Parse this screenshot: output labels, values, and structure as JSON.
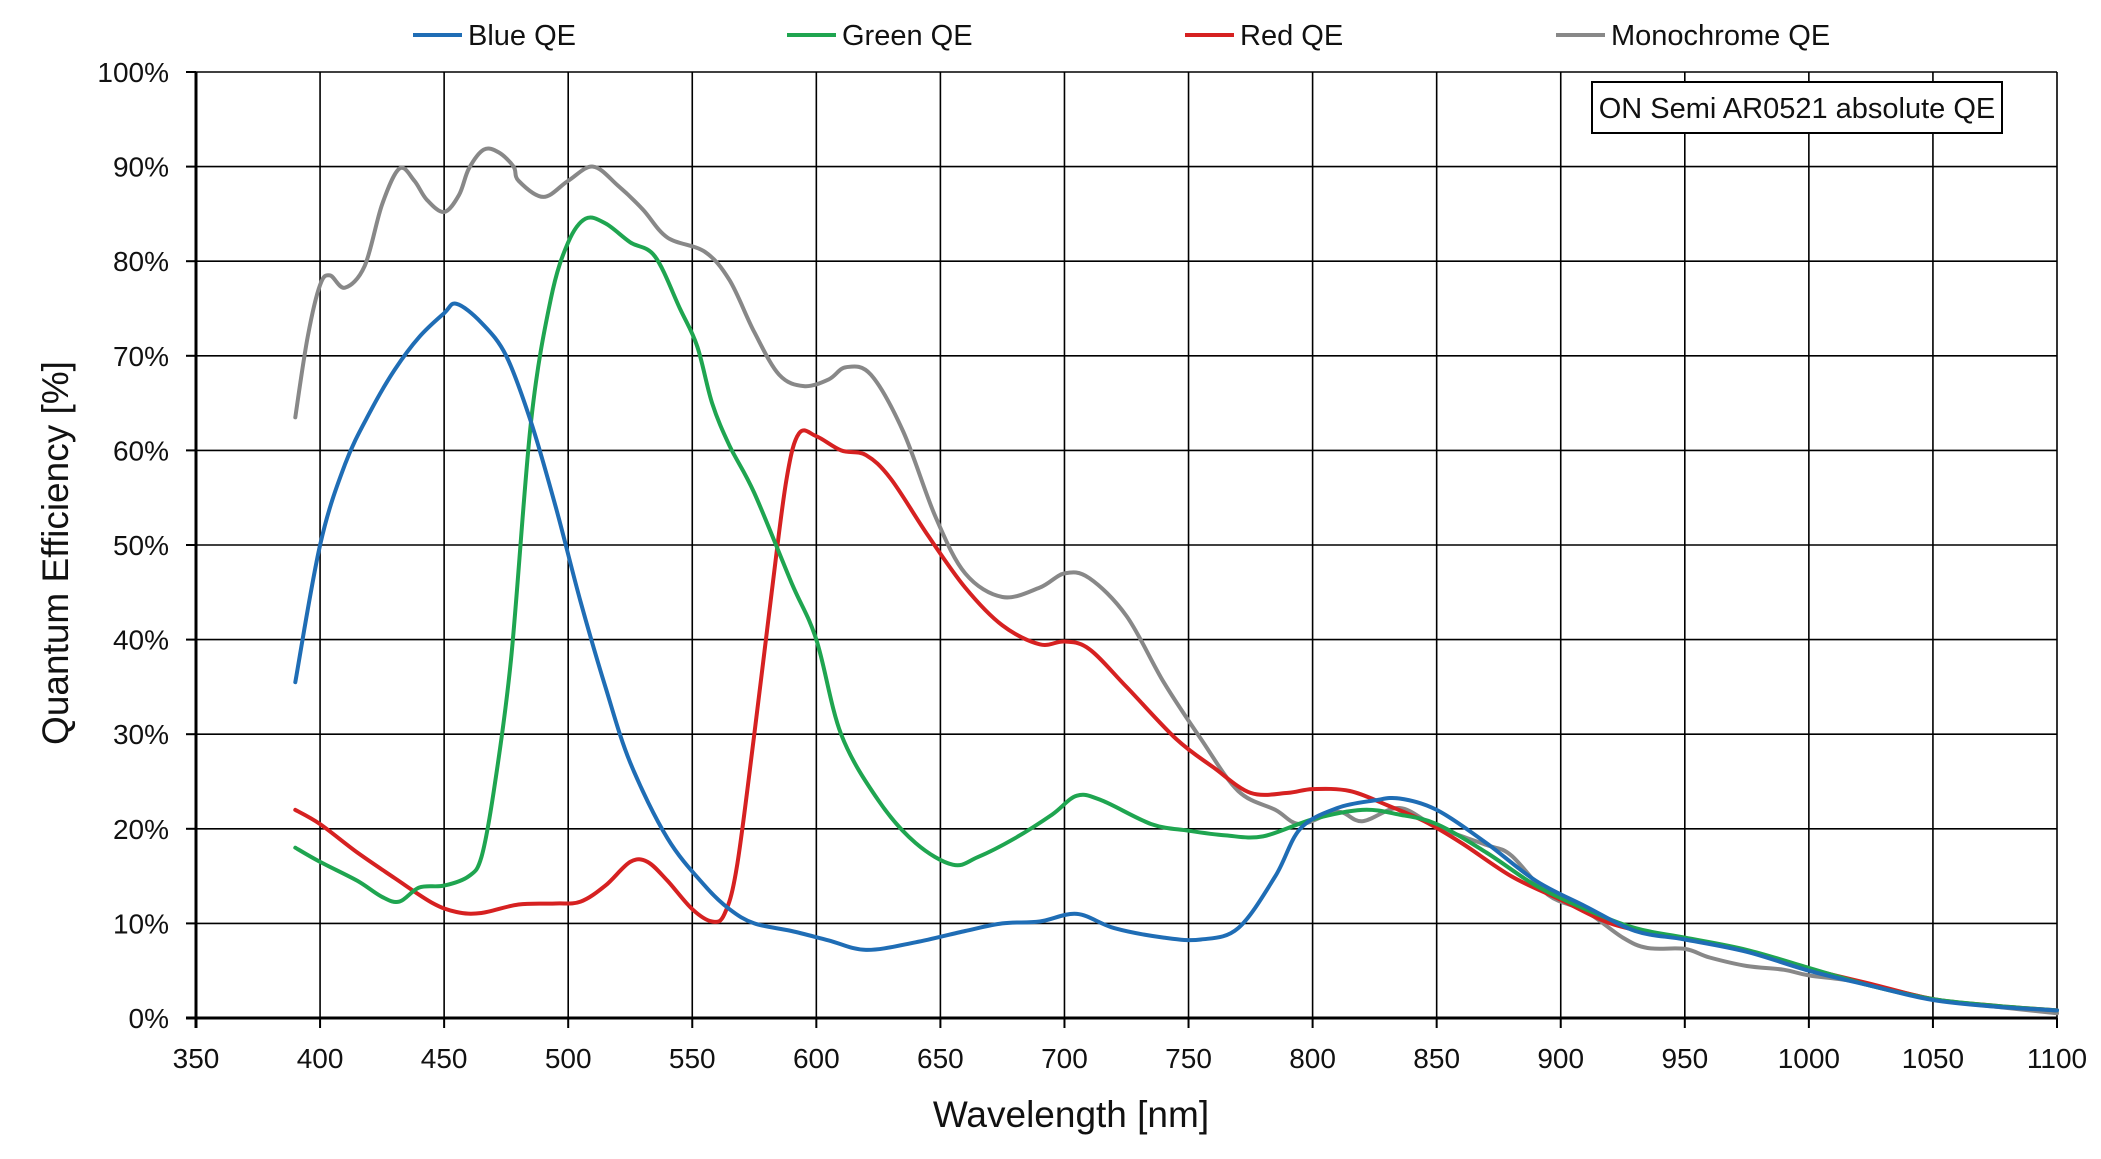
{
  "chart_data": {
    "type": "line",
    "title": "",
    "annotation": "ON Semi AR0521 absolute QE",
    "xlabel": "Wavelength [nm]",
    "ylabel": "Quantum Efficiency [%]",
    "xlim": [
      350,
      1100
    ],
    "ylim": [
      0,
      100
    ],
    "x_ticks": [
      350,
      400,
      450,
      500,
      550,
      600,
      650,
      700,
      750,
      800,
      850,
      900,
      950,
      1000,
      1050,
      1100
    ],
    "y_ticks": [
      0,
      10,
      20,
      30,
      40,
      50,
      60,
      70,
      80,
      90,
      100
    ],
    "y_tick_format": "%",
    "grid": true,
    "legend_position": "top",
    "series": [
      {
        "name": "Blue QE",
        "color": "#1f6db5",
        "points": [
          [
            390,
            35.5
          ],
          [
            400,
            50
          ],
          [
            410,
            58.5
          ],
          [
            420,
            64
          ],
          [
            430,
            68.5
          ],
          [
            440,
            72
          ],
          [
            450,
            74.5
          ],
          [
            455,
            75.5
          ],
          [
            465,
            73.5
          ],
          [
            475,
            70
          ],
          [
            485,
            63
          ],
          [
            495,
            54
          ],
          [
            505,
            44
          ],
          [
            515,
            35
          ],
          [
            525,
            27
          ],
          [
            540,
            19
          ],
          [
            555,
            14
          ],
          [
            565,
            11.5
          ],
          [
            575,
            10
          ],
          [
            590,
            9.2
          ],
          [
            605,
            8.2
          ],
          [
            620,
            7.2
          ],
          [
            640,
            8
          ],
          [
            660,
            9.2
          ],
          [
            675,
            10
          ],
          [
            690,
            10.2
          ],
          [
            705,
            11
          ],
          [
            720,
            9.5
          ],
          [
            740,
            8.5
          ],
          [
            755,
            8.3
          ],
          [
            770,
            9.5
          ],
          [
            785,
            15
          ],
          [
            795,
            20
          ],
          [
            810,
            22.2
          ],
          [
            825,
            23
          ],
          [
            835,
            23.2
          ],
          [
            850,
            22
          ],
          [
            870,
            18.5
          ],
          [
            890,
            14.5
          ],
          [
            910,
            11.8
          ],
          [
            930,
            9.2
          ],
          [
            950,
            8.3
          ],
          [
            975,
            7
          ],
          [
            1000,
            5
          ],
          [
            1025,
            3.4
          ],
          [
            1050,
            1.9
          ],
          [
            1075,
            1.2
          ],
          [
            1100,
            0.8
          ]
        ]
      },
      {
        "name": "Green QE",
        "color": "#1fa550",
        "points": [
          [
            390,
            18
          ],
          [
            400,
            16.5
          ],
          [
            415,
            14.5
          ],
          [
            425,
            12.8
          ],
          [
            432,
            12.3
          ],
          [
            440,
            13.8
          ],
          [
            450,
            14
          ],
          [
            460,
            15
          ],
          [
            465,
            17
          ],
          [
            470,
            24
          ],
          [
            477,
            38
          ],
          [
            485,
            63
          ],
          [
            493,
            76
          ],
          [
            500,
            82
          ],
          [
            507,
            84.5
          ],
          [
            515,
            84
          ],
          [
            525,
            82
          ],
          [
            535,
            80.5
          ],
          [
            545,
            75
          ],
          [
            552,
            71
          ],
          [
            558,
            65
          ],
          [
            565,
            60.5
          ],
          [
            575,
            55.5
          ],
          [
            590,
            46
          ],
          [
            600,
            40
          ],
          [
            610,
            30
          ],
          [
            625,
            23
          ],
          [
            640,
            18.5
          ],
          [
            655,
            16.2
          ],
          [
            665,
            17
          ],
          [
            680,
            19
          ],
          [
            695,
            21.5
          ],
          [
            705,
            23.5
          ],
          [
            715,
            23
          ],
          [
            735,
            20.5
          ],
          [
            750,
            19.8
          ],
          [
            765,
            19.3
          ],
          [
            780,
            19.2
          ],
          [
            800,
            21
          ],
          [
            820,
            22
          ],
          [
            835,
            21.5
          ],
          [
            850,
            20.5
          ],
          [
            870,
            17.5
          ],
          [
            890,
            14
          ],
          [
            910,
            11.5
          ],
          [
            930,
            9.5
          ],
          [
            950,
            8.5
          ],
          [
            975,
            7.2
          ],
          [
            1000,
            5.3
          ],
          [
            1025,
            3.4
          ],
          [
            1050,
            2
          ],
          [
            1075,
            1.3
          ],
          [
            1100,
            0.8
          ]
        ]
      },
      {
        "name": "Red QE",
        "color": "#d62121",
        "points": [
          [
            390,
            22
          ],
          [
            400,
            20.5
          ],
          [
            415,
            17.5
          ],
          [
            430,
            14.8
          ],
          [
            445,
            12.2
          ],
          [
            455,
            11.2
          ],
          [
            465,
            11.1
          ],
          [
            480,
            12
          ],
          [
            495,
            12.1
          ],
          [
            505,
            12.3
          ],
          [
            515,
            14
          ],
          [
            525,
            16.5
          ],
          [
            532,
            16.5
          ],
          [
            540,
            14.5
          ],
          [
            550,
            11.5
          ],
          [
            558,
            10.2
          ],
          [
            563,
            11
          ],
          [
            568,
            16
          ],
          [
            575,
            30
          ],
          [
            582,
            45
          ],
          [
            588,
            57
          ],
          [
            593,
            61.8
          ],
          [
            600,
            61.5
          ],
          [
            610,
            60
          ],
          [
            620,
            59.5
          ],
          [
            630,
            57
          ],
          [
            645,
            51
          ],
          [
            660,
            45.5
          ],
          [
            675,
            41.5
          ],
          [
            690,
            39.5
          ],
          [
            700,
            39.8
          ],
          [
            710,
            39
          ],
          [
            725,
            35
          ],
          [
            745,
            29.5
          ],
          [
            760,
            26.5
          ],
          [
            775,
            23.8
          ],
          [
            790,
            23.8
          ],
          [
            800,
            24.2
          ],
          [
            815,
            24
          ],
          [
            830,
            22.5
          ],
          [
            845,
            20.8
          ],
          [
            860,
            18.5
          ],
          [
            880,
            15
          ],
          [
            900,
            12.5
          ],
          [
            920,
            10
          ],
          [
            940,
            8.8
          ],
          [
            960,
            7.9
          ],
          [
            980,
            6.8
          ],
          [
            1000,
            5.2
          ],
          [
            1025,
            3.6
          ],
          [
            1050,
            2
          ],
          [
            1075,
            1.3
          ],
          [
            1100,
            0.8
          ]
        ]
      },
      {
        "name": "Monochrome QE",
        "color": "#888888",
        "points": [
          [
            390,
            63.5
          ],
          [
            395,
            72
          ],
          [
            400,
            77.5
          ],
          [
            404,
            78.5
          ],
          [
            410,
            77.2
          ],
          [
            418,
            79.5
          ],
          [
            425,
            86
          ],
          [
            432,
            89.8
          ],
          [
            438,
            88.5
          ],
          [
            443,
            86.5
          ],
          [
            450,
            85.2
          ],
          [
            456,
            87
          ],
          [
            460,
            89.8
          ],
          [
            466,
            91.8
          ],
          [
            472,
            91.5
          ],
          [
            478,
            90
          ],
          [
            480,
            88.5
          ],
          [
            490,
            86.8
          ],
          [
            500,
            88.5
          ],
          [
            510,
            90
          ],
          [
            520,
            88
          ],
          [
            530,
            85.5
          ],
          [
            540,
            82.5
          ],
          [
            555,
            81
          ],
          [
            565,
            78
          ],
          [
            575,
            72.5
          ],
          [
            585,
            68
          ],
          [
            595,
            66.8
          ],
          [
            605,
            67.5
          ],
          [
            612,
            68.8
          ],
          [
            622,
            68
          ],
          [
            635,
            62
          ],
          [
            648,
            53
          ],
          [
            660,
            47
          ],
          [
            675,
            44.5
          ],
          [
            690,
            45.5
          ],
          [
            700,
            47
          ],
          [
            710,
            46.5
          ],
          [
            725,
            42.5
          ],
          [
            740,
            35.5
          ],
          [
            755,
            29.5
          ],
          [
            770,
            24
          ],
          [
            785,
            22
          ],
          [
            795,
            20.5
          ],
          [
            810,
            21.8
          ],
          [
            820,
            20.8
          ],
          [
            835,
            22.2
          ],
          [
            850,
            20.2
          ],
          [
            870,
            18.3
          ],
          [
            880,
            17.2
          ],
          [
            895,
            13
          ],
          [
            910,
            11.3
          ],
          [
            925,
            8.5
          ],
          [
            935,
            7.4
          ],
          [
            950,
            7.3
          ],
          [
            960,
            6.4
          ],
          [
            975,
            5.5
          ],
          [
            990,
            5.1
          ],
          [
            1000,
            4.5
          ],
          [
            1020,
            3.8
          ],
          [
            1050,
            2
          ],
          [
            1075,
            1.2
          ],
          [
            1100,
            0.5
          ]
        ]
      }
    ]
  }
}
